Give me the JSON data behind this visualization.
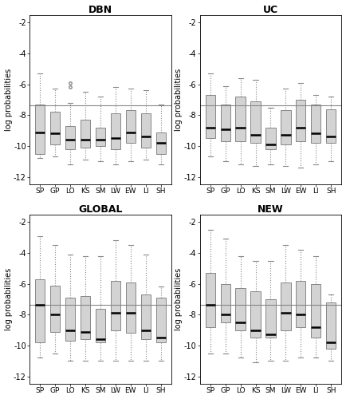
{
  "titles": [
    "DBN",
    "UC",
    "GLOBAL",
    "NEW"
  ],
  "categories": [
    "SP",
    "GP",
    "LO",
    "KS",
    "SM",
    "LW",
    "EW",
    "LI",
    "SH"
  ],
  "ylabel": "log probabilities",
  "ylim": [
    -12.5,
    -1.5
  ],
  "yticks": [
    -12,
    -10,
    -8,
    -6,
    -4,
    -2
  ],
  "hline_y": -7.35,
  "box_facecolor": "#d3d3d3",
  "box_edgecolor": "#888888",
  "median_color": "#000000",
  "whisker_color": "#888888",
  "flier_color": "#888888",
  "panels": [
    {
      "name": "DBN",
      "data": [
        {
          "q1": -10.5,
          "median": -9.1,
          "q3": -7.3,
          "whislo": -10.8,
          "whishi": -5.3,
          "fliers": []
        },
        {
          "q1": -9.9,
          "median": -9.2,
          "q3": -7.8,
          "whislo": -10.7,
          "whishi": -6.3,
          "fliers": []
        },
        {
          "q1": -10.2,
          "median": -9.6,
          "q3": -8.7,
          "whislo": -11.2,
          "whishi": -7.2,
          "fliers": [
            -5.9,
            -6.2
          ]
        },
        {
          "q1": -10.1,
          "median": -9.6,
          "q3": -8.3,
          "whislo": -10.9,
          "whishi": -6.5,
          "fliers": []
        },
        {
          "q1": -10.0,
          "median": -9.6,
          "q3": -8.8,
          "whislo": -11.0,
          "whishi": -6.8,
          "fliers": []
        },
        {
          "q1": -10.2,
          "median": -9.5,
          "q3": -7.9,
          "whislo": -11.2,
          "whishi": -6.2,
          "fliers": []
        },
        {
          "q1": -9.8,
          "median": -9.1,
          "q3": -7.7,
          "whislo": -11.0,
          "whishi": -6.3,
          "fliers": []
        },
        {
          "q1": -10.1,
          "median": -9.4,
          "q3": -7.9,
          "whislo": -10.9,
          "whishi": -6.4,
          "fliers": []
        },
        {
          "q1": -10.5,
          "median": -9.8,
          "q3": -9.1,
          "whislo": -11.2,
          "whishi": -7.3,
          "fliers": []
        }
      ]
    },
    {
      "name": "UC",
      "data": [
        {
          "q1": -9.5,
          "median": -8.8,
          "q3": -6.7,
          "whislo": -10.7,
          "whishi": -5.3,
          "fliers": []
        },
        {
          "q1": -9.7,
          "median": -8.9,
          "q3": -7.3,
          "whislo": -11.0,
          "whishi": -6.1,
          "fliers": []
        },
        {
          "q1": -9.7,
          "median": -8.8,
          "q3": -6.8,
          "whislo": -11.2,
          "whishi": -5.6,
          "fliers": []
        },
        {
          "q1": -9.8,
          "median": -9.3,
          "q3": -7.1,
          "whislo": -11.3,
          "whishi": -5.7,
          "fliers": []
        },
        {
          "q1": -10.2,
          "median": -9.9,
          "q3": -8.8,
          "whislo": -11.2,
          "whishi": -7.5,
          "fliers": []
        },
        {
          "q1": -9.9,
          "median": -9.3,
          "q3": -7.7,
          "whislo": -11.3,
          "whishi": -6.3,
          "fliers": []
        },
        {
          "q1": -9.7,
          "median": -8.8,
          "q3": -7.0,
          "whislo": -11.4,
          "whishi": -5.9,
          "fliers": []
        },
        {
          "q1": -9.8,
          "median": -9.2,
          "q3": -7.3,
          "whislo": -11.2,
          "whishi": -6.7,
          "fliers": []
        },
        {
          "q1": -9.8,
          "median": -9.4,
          "q3": -7.6,
          "whislo": -11.0,
          "whishi": -6.8,
          "fliers": []
        }
      ]
    },
    {
      "name": "GLOBAL",
      "data": [
        {
          "q1": -9.8,
          "median": -7.35,
          "q3": -5.7,
          "whislo": -10.8,
          "whishi": -2.9,
          "fliers": []
        },
        {
          "q1": -9.1,
          "median": -8.0,
          "q3": -6.1,
          "whislo": -10.5,
          "whishi": -3.5,
          "fliers": []
        },
        {
          "q1": -9.7,
          "median": -9.0,
          "q3": -6.9,
          "whislo": -11.0,
          "whishi": -4.1,
          "fliers": []
        },
        {
          "q1": -9.6,
          "median": -9.1,
          "q3": -6.8,
          "whislo": -11.0,
          "whishi": -4.2,
          "fliers": []
        },
        {
          "q1": -9.8,
          "median": -9.6,
          "q3": -7.6,
          "whislo": -11.0,
          "whishi": -4.2,
          "fliers": []
        },
        {
          "q1": -9.0,
          "median": -7.9,
          "q3": -5.8,
          "whislo": -11.0,
          "whishi": -3.2,
          "fliers": []
        },
        {
          "q1": -9.2,
          "median": -7.9,
          "q3": -5.9,
          "whislo": -11.0,
          "whishi": -3.5,
          "fliers": []
        },
        {
          "q1": -9.6,
          "median": -9.0,
          "q3": -6.7,
          "whislo": -11.0,
          "whishi": -4.1,
          "fliers": []
        },
        {
          "q1": -9.8,
          "median": -9.5,
          "q3": -6.9,
          "whislo": -11.0,
          "whishi": -6.2,
          "fliers": []
        }
      ]
    },
    {
      "name": "NEW",
      "data": [
        {
          "q1": -8.8,
          "median": -7.35,
          "q3": -5.3,
          "whislo": -10.5,
          "whishi": -2.5,
          "fliers": []
        },
        {
          "q1": -8.5,
          "median": -8.0,
          "q3": -6.0,
          "whislo": -10.5,
          "whishi": -3.1,
          "fliers": []
        },
        {
          "q1": -9.0,
          "median": -8.5,
          "q3": -6.3,
          "whislo": -10.8,
          "whishi": -4.2,
          "fliers": []
        },
        {
          "q1": -9.5,
          "median": -9.0,
          "q3": -6.5,
          "whislo": -11.1,
          "whishi": -4.5,
          "fliers": []
        },
        {
          "q1": -9.5,
          "median": -9.3,
          "q3": -7.0,
          "whislo": -11.0,
          "whishi": -4.5,
          "fliers": []
        },
        {
          "q1": -9.0,
          "median": -7.9,
          "q3": -5.9,
          "whislo": -11.0,
          "whishi": -3.5,
          "fliers": []
        },
        {
          "q1": -8.8,
          "median": -8.0,
          "q3": -5.8,
          "whislo": -10.8,
          "whishi": -3.8,
          "fliers": []
        },
        {
          "q1": -9.5,
          "median": -8.8,
          "q3": -6.0,
          "whislo": -10.8,
          "whishi": -4.2,
          "fliers": []
        },
        {
          "q1": -10.2,
          "median": -9.8,
          "q3": -7.2,
          "whislo": -11.0,
          "whishi": -6.7,
          "fliers": []
        }
      ]
    }
  ]
}
